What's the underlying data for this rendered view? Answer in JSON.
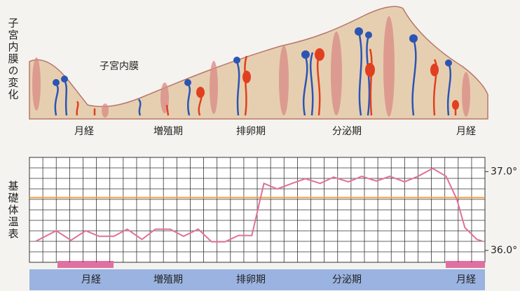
{
  "diagram": {
    "title": "子宮内膜の変化",
    "label": "子宮内膜",
    "phases": [
      "月経",
      "増殖期",
      "排卵期",
      "分泌期",
      "月経"
    ]
  },
  "chart_data": {
    "type": "line",
    "y_label": "基礎体温表",
    "x": [
      0.5,
      2,
      3.1,
      4.2,
      5.2,
      6.3,
      7.3,
      8.4,
      9.4,
      10.5,
      11.5,
      12.6,
      13.6,
      14.6,
      15.6,
      16.6,
      17.5,
      18.5,
      19.6,
      20.6,
      21.7,
      22.7,
      23.8,
      24.8,
      25.9,
      26.9,
      28,
      29,
      30.1,
      31.1,
      31.9,
      32.5,
      33.4,
      33.8
    ],
    "values": [
      36.12,
      36.25,
      36.13,
      36.25,
      36.18,
      36.18,
      36.27,
      36.14,
      36.27,
      36.27,
      36.18,
      36.27,
      36.11,
      36.11,
      36.19,
      36.19,
      36.85,
      36.78,
      36.85,
      36.91,
      36.85,
      36.93,
      36.87,
      36.94,
      36.88,
      36.94,
      36.87,
      36.94,
      37.04,
      36.94,
      36.65,
      36.29,
      36.14,
      36.12
    ],
    "color": "#e0709a",
    "xlim": [
      0,
      34
    ],
    "ylim": [
      35.85,
      37.18
    ],
    "yticks": [
      {
        "value": 36.0,
        "label": "36.0°"
      },
      {
        "value": 37.0,
        "label": "37.0°"
      }
    ],
    "reference_line": {
      "value": 36.67,
      "color": "#f0a040"
    },
    "phases": [
      "月経",
      "増殖期",
      "排卵期",
      "分泌期",
      "月経"
    ]
  }
}
